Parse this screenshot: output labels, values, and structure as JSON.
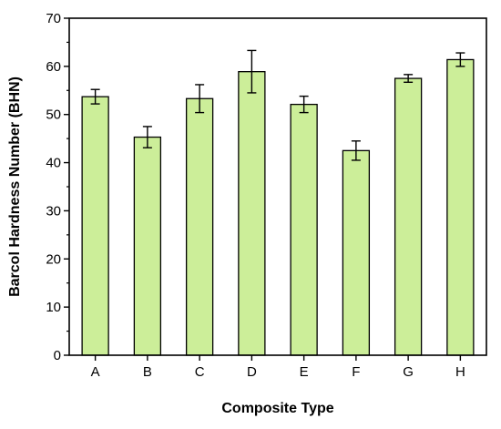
{
  "chart_data": {
    "type": "bar",
    "title": "",
    "xlabel": "Composite Type",
    "ylabel": "Barcol Hardness Number (BHN)",
    "categories": [
      "A",
      "B",
      "C",
      "D",
      "E",
      "F",
      "G",
      "H"
    ],
    "values": [
      53.7,
      45.3,
      53.3,
      58.9,
      52.1,
      42.5,
      57.5,
      61.4
    ],
    "errors": [
      1.5,
      2.2,
      2.9,
      4.4,
      1.7,
      2.0,
      0.8,
      1.4
    ],
    "ylim": [
      0,
      70
    ],
    "yticks": [
      0,
      10,
      20,
      30,
      40,
      50,
      60,
      70
    ],
    "grid": false,
    "legend": "none",
    "colors": {
      "bar_fill": "#ccee99",
      "bar_stroke": "#000000",
      "axis": "#000000"
    }
  }
}
